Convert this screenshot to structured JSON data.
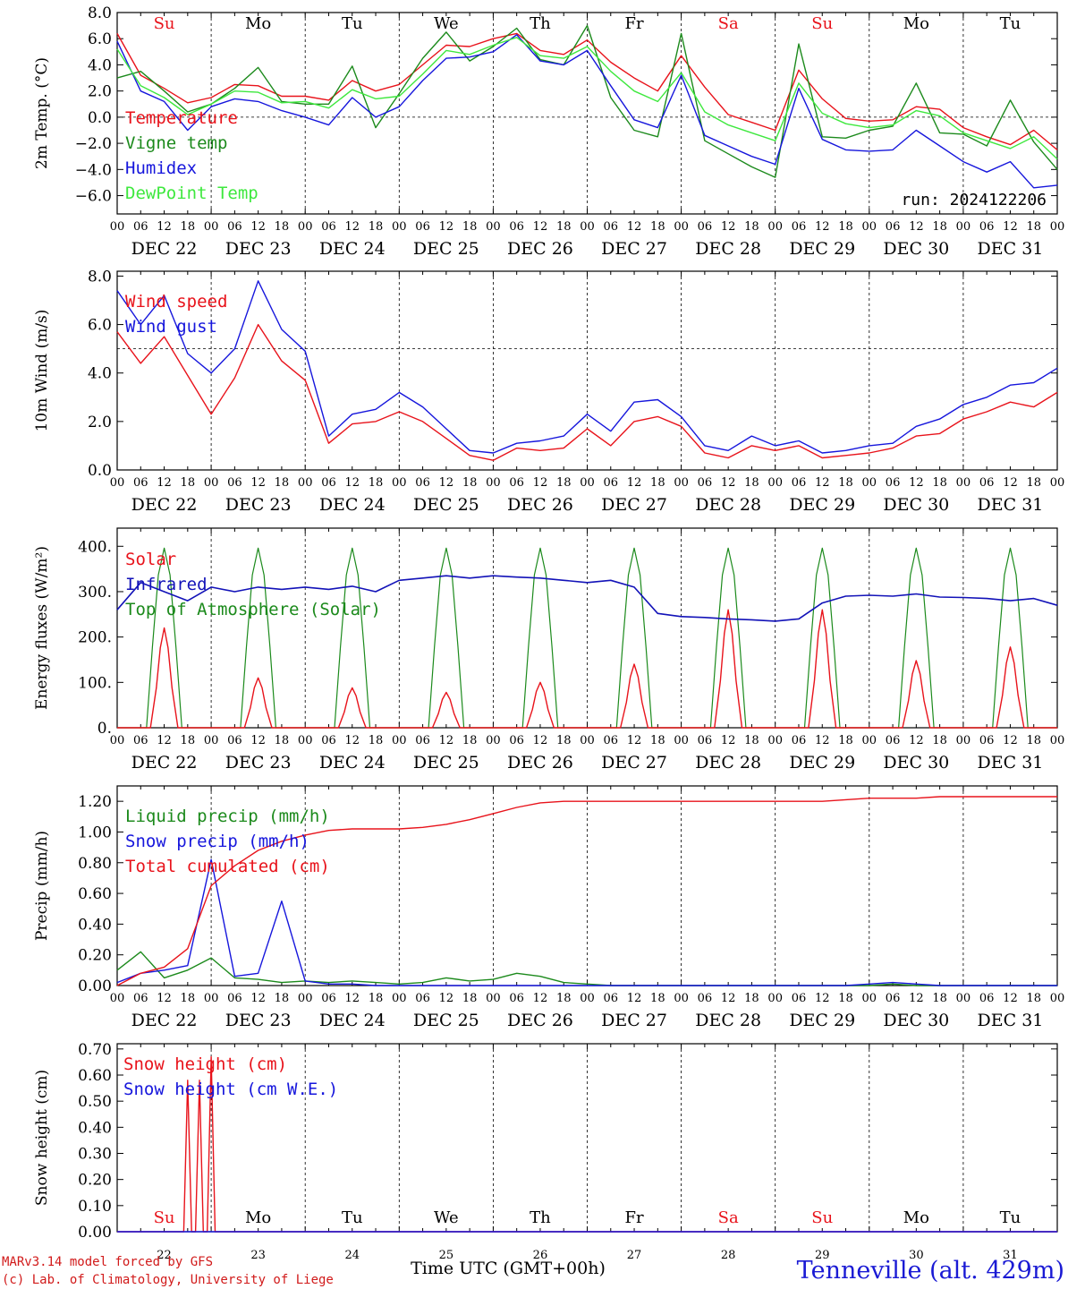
{
  "colors": {
    "red": "#e8131b",
    "green": "#1c8a1c",
    "blue": "#1616dc",
    "lightgreen": "#3ee83e",
    "navy": "#1212b8",
    "credit": "#d11a1a",
    "station": "#1a1ad4"
  },
  "days": [
    "Su",
    "Mo",
    "Tu",
    "We",
    "Th",
    "Fr",
    "Sa",
    "Su",
    "Mo",
    "Tu"
  ],
  "weekend_days": [
    "Sa",
    "Su"
  ],
  "dates": [
    "DEC 22",
    "DEC 23",
    "DEC 24",
    "DEC 25",
    "DEC 26",
    "DEC 27",
    "DEC 28",
    "DEC 29",
    "DEC 30",
    "DEC 31"
  ],
  "hour_ticks": [
    "00",
    "06",
    "12",
    "18"
  ],
  "hour_final": "00",
  "day_numbers": [
    "22",
    "23",
    "24",
    "25",
    "26",
    "27",
    "28",
    "29",
    "30",
    "31"
  ],
  "xlabel": "Time UTC (GMT+00h)",
  "run_label": "run: 2024122206",
  "credits": [
    "MARv3.14 model forced by GFS",
    "(c) Lab. of Climatology, University of Liege"
  ],
  "station": "Tenneville (alt. 429m)",
  "chart_data": [
    {
      "type": "line",
      "ylabel": "2m Temp. (°C)",
      "ylim": [
        -7.4,
        8.0
      ],
      "yticks": [
        "8.0",
        "6.0",
        "4.0",
        "2.0",
        "0.0",
        "−2.0",
        "−4.0",
        "−6.0"
      ],
      "ytick_values": [
        8,
        6,
        4,
        2,
        0,
        -2,
        -4,
        -6
      ],
      "ref_line": 0,
      "x_hours": [
        0,
        6,
        12,
        18,
        24,
        30,
        36,
        42,
        48,
        54,
        60,
        66,
        72,
        78,
        84,
        90,
        96,
        102,
        108,
        114,
        120,
        126,
        132,
        138,
        144,
        150,
        156,
        162,
        168,
        174,
        180,
        186,
        192,
        198,
        204,
        210,
        216,
        222,
        228,
        234,
        240
      ],
      "series": [
        {
          "name": "Temperature",
          "color": "red",
          "values": [
            6.4,
            3.2,
            2.2,
            1.1,
            1.5,
            2.5,
            2.4,
            1.6,
            1.6,
            1.3,
            2.8,
            2.0,
            2.5,
            4.0,
            5.5,
            5.4,
            6.0,
            6.4,
            5.1,
            4.8,
            5.9,
            4.2,
            3.0,
            2.0,
            4.7,
            2.3,
            0.2,
            -0.4,
            -1.0,
            3.6,
            1.4,
            -0.1,
            -0.3,
            -0.2,
            0.8,
            0.6,
            -0.8,
            -1.5,
            -2.1,
            -1.0,
            -2.5
          ]
        },
        {
          "name": "Vigne temp",
          "color": "green",
          "values": [
            3.0,
            3.5,
            2.0,
            0.4,
            1.0,
            2.2,
            3.8,
            1.2,
            1.0,
            1.0,
            3.9,
            -0.8,
            1.8,
            4.5,
            6.5,
            4.3,
            5.4,
            6.8,
            4.4,
            4.0,
            7.0,
            1.5,
            -1.0,
            -1.5,
            6.4,
            -1.8,
            -2.8,
            -3.8,
            -4.6,
            5.6,
            -1.5,
            -1.6,
            -1.0,
            -0.7,
            2.6,
            -1.2,
            -1.3,
            -2.2,
            1.3,
            -1.9,
            -4.0
          ]
        },
        {
          "name": "Humidex",
          "color": "blue",
          "values": [
            5.8,
            2.0,
            1.2,
            -1.0,
            0.8,
            1.4,
            1.2,
            0.5,
            0.0,
            -0.6,
            1.5,
            0.0,
            0.8,
            2.8,
            4.5,
            4.6,
            5.0,
            6.3,
            4.3,
            4.0,
            5.1,
            2.4,
            -0.2,
            -0.8,
            3.2,
            -1.4,
            -2.2,
            -3.0,
            -3.6,
            2.2,
            -1.7,
            -2.5,
            -2.6,
            -2.5,
            -1.0,
            -2.2,
            -3.4,
            -4.2,
            -3.4,
            -5.4,
            -5.2
          ]
        },
        {
          "name": "DewPoint Temp",
          "color": "lightgreen",
          "values": [
            5.2,
            2.4,
            1.5,
            0.2,
            1.0,
            2.0,
            1.9,
            1.1,
            1.2,
            0.7,
            2.1,
            1.4,
            1.6,
            3.3,
            5.1,
            4.8,
            5.5,
            6.1,
            4.7,
            4.5,
            5.4,
            3.5,
            2.0,
            1.2,
            3.4,
            0.4,
            -0.6,
            -1.2,
            -1.8,
            2.6,
            0.3,
            -0.5,
            -0.8,
            -0.6,
            0.5,
            0.1,
            -1.2,
            -1.8,
            -2.4,
            -1.5,
            -3.2
          ]
        }
      ]
    },
    {
      "type": "line",
      "ylabel": "10m Wind (m/s)",
      "ylim": [
        0,
        8.2
      ],
      "yticks": [
        "8.0",
        "6.0",
        "4.0",
        "2.0",
        "0.0"
      ],
      "ytick_values": [
        8,
        6,
        4,
        2,
        0
      ],
      "ref_line": 5,
      "x_hours": [
        0,
        6,
        12,
        18,
        24,
        30,
        36,
        42,
        48,
        54,
        60,
        66,
        72,
        78,
        84,
        90,
        96,
        102,
        108,
        114,
        120,
        126,
        132,
        138,
        144,
        150,
        156,
        162,
        168,
        174,
        180,
        186,
        192,
        198,
        204,
        210,
        216,
        222,
        228,
        234,
        240
      ],
      "series": [
        {
          "name": "Wind speed",
          "color": "red",
          "values": [
            5.7,
            4.4,
            5.5,
            3.9,
            2.3,
            3.8,
            6.0,
            4.5,
            3.7,
            1.1,
            1.9,
            2.0,
            2.4,
            2.0,
            1.3,
            0.6,
            0.4,
            0.9,
            0.8,
            0.9,
            1.7,
            1.0,
            2.0,
            2.2,
            1.8,
            0.7,
            0.5,
            1.0,
            0.8,
            1.0,
            0.5,
            0.6,
            0.7,
            0.9,
            1.4,
            1.5,
            2.1,
            2.4,
            2.8,
            2.6,
            3.2
          ]
        },
        {
          "name": "Wind gust",
          "color": "blue",
          "values": [
            7.4,
            6.0,
            7.2,
            4.8,
            4.0,
            5.0,
            7.8,
            5.8,
            4.9,
            1.4,
            2.3,
            2.5,
            3.2,
            2.6,
            1.7,
            0.8,
            0.7,
            1.1,
            1.2,
            1.4,
            2.3,
            1.6,
            2.8,
            2.9,
            2.2,
            1.0,
            0.8,
            1.4,
            1.0,
            1.2,
            0.7,
            0.8,
            1.0,
            1.1,
            1.8,
            2.1,
            2.7,
            3.0,
            3.5,
            3.6,
            4.2
          ]
        }
      ]
    },
    {
      "type": "line",
      "ylabel": "Energy fluxes (W/m²)",
      "ylim": [
        0,
        440
      ],
      "yticks": [
        "400.",
        "300.",
        "200.",
        "100.",
        "0."
      ],
      "ytick_values": [
        400,
        300,
        200,
        100,
        0
      ],
      "x_hours_infrared": [
        0,
        6,
        12,
        18,
        24,
        30,
        36,
        42,
        48,
        54,
        60,
        66,
        72,
        78,
        84,
        90,
        96,
        102,
        108,
        114,
        120,
        126,
        132,
        138,
        144,
        150,
        156,
        162,
        168,
        174,
        180,
        186,
        192,
        198,
        204,
        210,
        216,
        222,
        228,
        234,
        240
      ],
      "series": [
        {
          "name": "Solar",
          "color": "red",
          "daily_peaks": [
            220,
            110,
            88,
            78,
            100,
            140,
            260,
            260,
            148,
            178
          ]
        },
        {
          "name": "Infrared",
          "color": "navy",
          "values": [
            260,
            320,
            300,
            280,
            310,
            300,
            310,
            305,
            310,
            305,
            312,
            300,
            325,
            330,
            335,
            330,
            335,
            332,
            330,
            325,
            320,
            325,
            310,
            252,
            245,
            243,
            240,
            238,
            235,
            240,
            275,
            290,
            292,
            290,
            295,
            288,
            287,
            285,
            280,
            285,
            270
          ]
        },
        {
          "name": "Top of Atmosphere (Solar)",
          "color": "green",
          "daily_peak": 396
        }
      ]
    },
    {
      "type": "line",
      "ylabel": "Precip (mm/h)",
      "ylim": [
        0,
        1.3
      ],
      "yticks": [
        "1.20",
        "1.00",
        "0.80",
        "0.60",
        "0.40",
        "0.20",
        "0.00"
      ],
      "ytick_values": [
        1.2,
        1.0,
        0.8,
        0.6,
        0.4,
        0.2,
        0.0
      ],
      "x_hours": [
        0,
        6,
        12,
        18,
        24,
        30,
        36,
        42,
        48,
        54,
        60,
        66,
        72,
        78,
        84,
        90,
        96,
        102,
        108,
        114,
        120,
        126,
        132,
        138,
        144,
        150,
        156,
        162,
        168,
        174,
        180,
        186,
        192,
        198,
        204,
        210,
        216,
        222,
        228,
        234,
        240
      ],
      "series": [
        {
          "name": "Liquid precip (mm/h)",
          "color": "green",
          "values": [
            0.1,
            0.22,
            0.05,
            0.1,
            0.18,
            0.05,
            0.04,
            0.02,
            0.03,
            0.02,
            0.03,
            0.02,
            0.01,
            0.02,
            0.05,
            0.03,
            0.04,
            0.08,
            0.06,
            0.02,
            0.01,
            0.0,
            0.0,
            0.0,
            0.0,
            0.0,
            0.0,
            0.0,
            0.0,
            0.0,
            0.0,
            0.0,
            0.0,
            0.01,
            0.0,
            0.0,
            0.0,
            0.0,
            0.0,
            0.0,
            0.0
          ]
        },
        {
          "name": "Snow precip (mm/h)",
          "color": "blue",
          "values": [
            0.02,
            0.08,
            0.1,
            0.13,
            0.82,
            0.06,
            0.08,
            0.55,
            0.03,
            0.01,
            0.01,
            0.0,
            0.0,
            0.0,
            0.0,
            0.0,
            0.0,
            0.0,
            0.0,
            0.0,
            0.0,
            0.0,
            0.0,
            0.0,
            0.0,
            0.0,
            0.0,
            0.0,
            0.0,
            0.0,
            0.0,
            0.0,
            0.01,
            0.02,
            0.01,
            0.0,
            0.0,
            0.0,
            0.0,
            0.0,
            0.0
          ]
        },
        {
          "name": "Total cumulated (cm)",
          "color": "red",
          "values": [
            0.0,
            0.08,
            0.12,
            0.24,
            0.65,
            0.78,
            0.88,
            0.94,
            0.98,
            1.01,
            1.02,
            1.02,
            1.02,
            1.03,
            1.05,
            1.08,
            1.12,
            1.16,
            1.19,
            1.2,
            1.2,
            1.2,
            1.2,
            1.2,
            1.2,
            1.2,
            1.2,
            1.2,
            1.2,
            1.2,
            1.2,
            1.21,
            1.22,
            1.22,
            1.22,
            1.23,
            1.23,
            1.23,
            1.23,
            1.23,
            1.23
          ]
        }
      ]
    },
    {
      "type": "line",
      "ylabel": "Snow height (cm)",
      "ylim": [
        0,
        0.72
      ],
      "yticks": [
        "0.70",
        "0.60",
        "0.50",
        "0.40",
        "0.30",
        "0.20",
        "0.10",
        "0.00"
      ],
      "ytick_values": [
        0.7,
        0.6,
        0.5,
        0.4,
        0.3,
        0.2,
        0.1,
        0.0
      ],
      "series": [
        {
          "name": "Snow height (cm)",
          "color": "red",
          "x_hours": [
            0,
            17,
            18,
            19,
            20,
            21,
            22,
            23,
            24,
            25,
            26,
            240
          ],
          "values": [
            0,
            0,
            0.58,
            0,
            0.0,
            0.58,
            0,
            0.0,
            0.67,
            0,
            0,
            0
          ]
        },
        {
          "name": "Snow height (cm W.E.)",
          "color": "blue",
          "x_hours": [
            0,
            240
          ],
          "values": [
            0,
            0
          ]
        }
      ]
    }
  ]
}
